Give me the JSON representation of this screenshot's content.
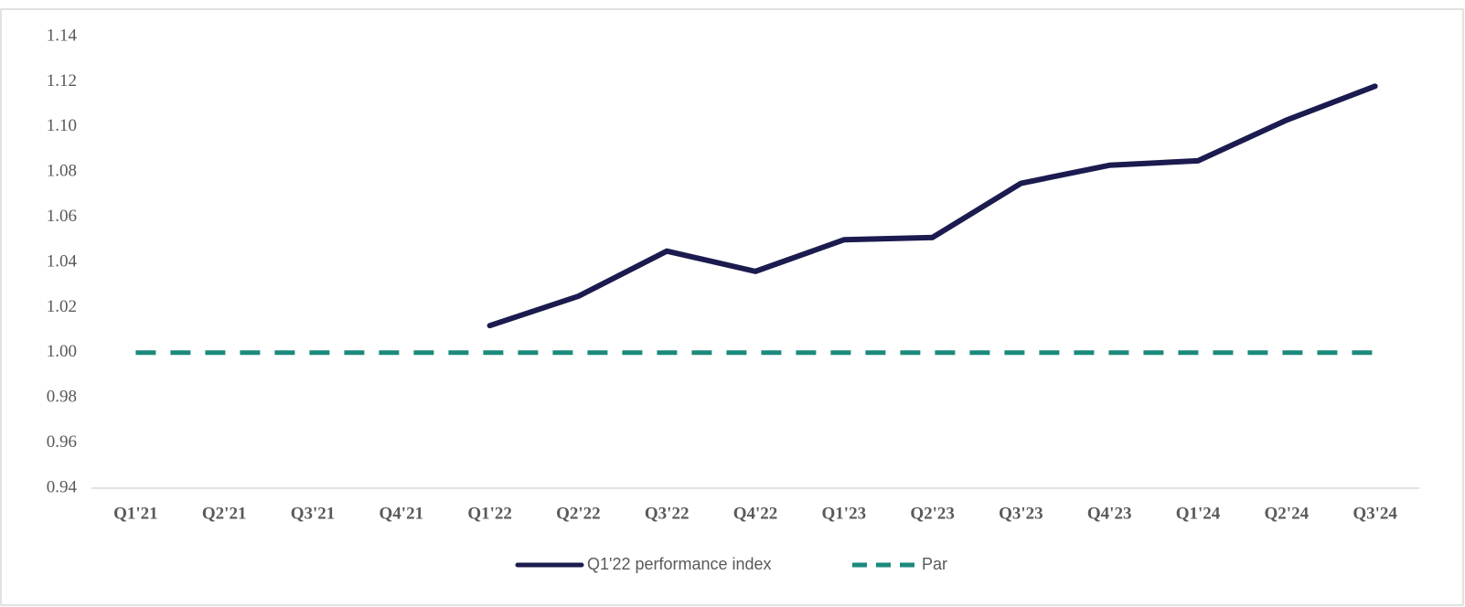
{
  "chart_data": {
    "type": "line",
    "categories": [
      "Q1'21",
      "Q2'21",
      "Q3'21",
      "Q4'21",
      "Q1'22",
      "Q2'22",
      "Q3'22",
      "Q4'22",
      "Q1'23",
      "Q2'23",
      "Q3'23",
      "Q4'23",
      "Q1'24",
      "Q2'24",
      "Q3'24"
    ],
    "series": [
      {
        "name": "Q1'22 performance index",
        "color": "#1b1b4f",
        "dash": false,
        "values": [
          null,
          null,
          null,
          null,
          1.012,
          1.025,
          1.045,
          1.036,
          1.05,
          1.051,
          1.075,
          1.083,
          1.085,
          1.103,
          1.118
        ]
      },
      {
        "name": "Par",
        "color": "#1b8a7c",
        "dash": true,
        "values": [
          1.0,
          1.0,
          1.0,
          1.0,
          1.0,
          1.0,
          1.0,
          1.0,
          1.0,
          1.0,
          1.0,
          1.0,
          1.0,
          1.0,
          1.0
        ]
      }
    ],
    "ylim": [
      0.94,
      1.14
    ],
    "yticks": [
      0.94,
      0.96,
      0.98,
      {
        "value": 1.0,
        "label": "1.00"
      },
      1.02,
      1.04,
      1.06,
      1.08,
      {
        "value": 1.1,
        "label": "1.10"
      },
      1.12,
      1.14
    ],
    "grid": false,
    "legend": "bottom"
  }
}
